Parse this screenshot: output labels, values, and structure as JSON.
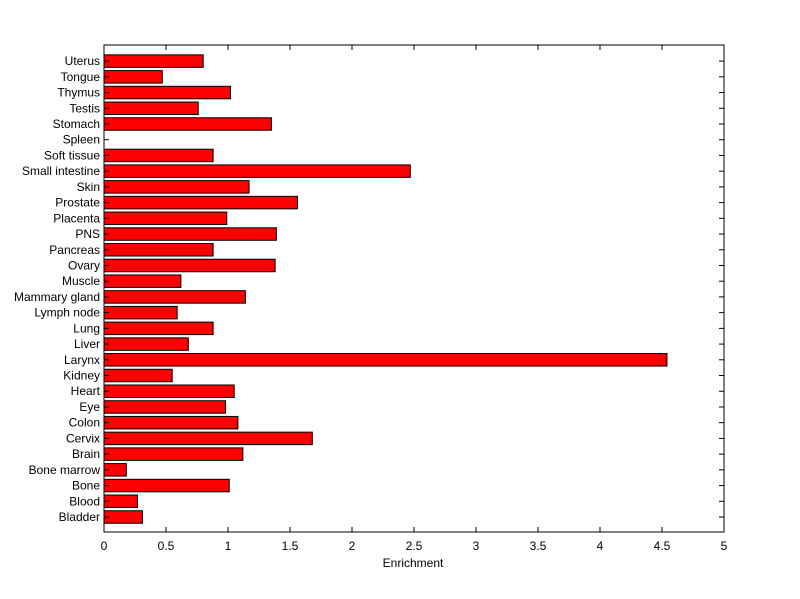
{
  "chart_data": {
    "type": "bar",
    "orientation": "horizontal",
    "title": "",
    "xlabel": "Enrichment",
    "ylabel": "",
    "xlim": [
      0,
      5
    ],
    "x_ticks": [
      "0",
      "0.5",
      "1",
      "1.5",
      "2",
      "2.5",
      "3",
      "3.5",
      "4",
      "4.5",
      "5"
    ],
    "grid": false,
    "legend": "none",
    "bar_color": "#ff0000",
    "bar_edge_color": "#000000",
    "categories": [
      "Bladder",
      "Blood",
      "Bone",
      "Bone marrow",
      "Brain",
      "Cervix",
      "Colon",
      "Eye",
      "Heart",
      "Kidney",
      "Larynx",
      "Liver",
      "Lung",
      "Lymph node",
      "Mammary gland",
      "Muscle",
      "Ovary",
      "Pancreas",
      "PNS",
      "Placenta",
      "Prostate",
      "Skin",
      "Small intestine",
      "Soft tissue",
      "Spleen",
      "Stomach",
      "Testis",
      "Thymus",
      "Tongue",
      "Uterus"
    ],
    "values": [
      0.31,
      0.27,
      1.01,
      0.18,
      1.12,
      1.68,
      1.08,
      0.98,
      1.05,
      0.55,
      4.54,
      0.68,
      0.88,
      0.59,
      1.14,
      0.62,
      1.38,
      0.88,
      1.39,
      0.99,
      1.56,
      1.17,
      2.47,
      0.88,
      0.0,
      1.35,
      0.76,
      1.02,
      0.47,
      0.8
    ]
  }
}
